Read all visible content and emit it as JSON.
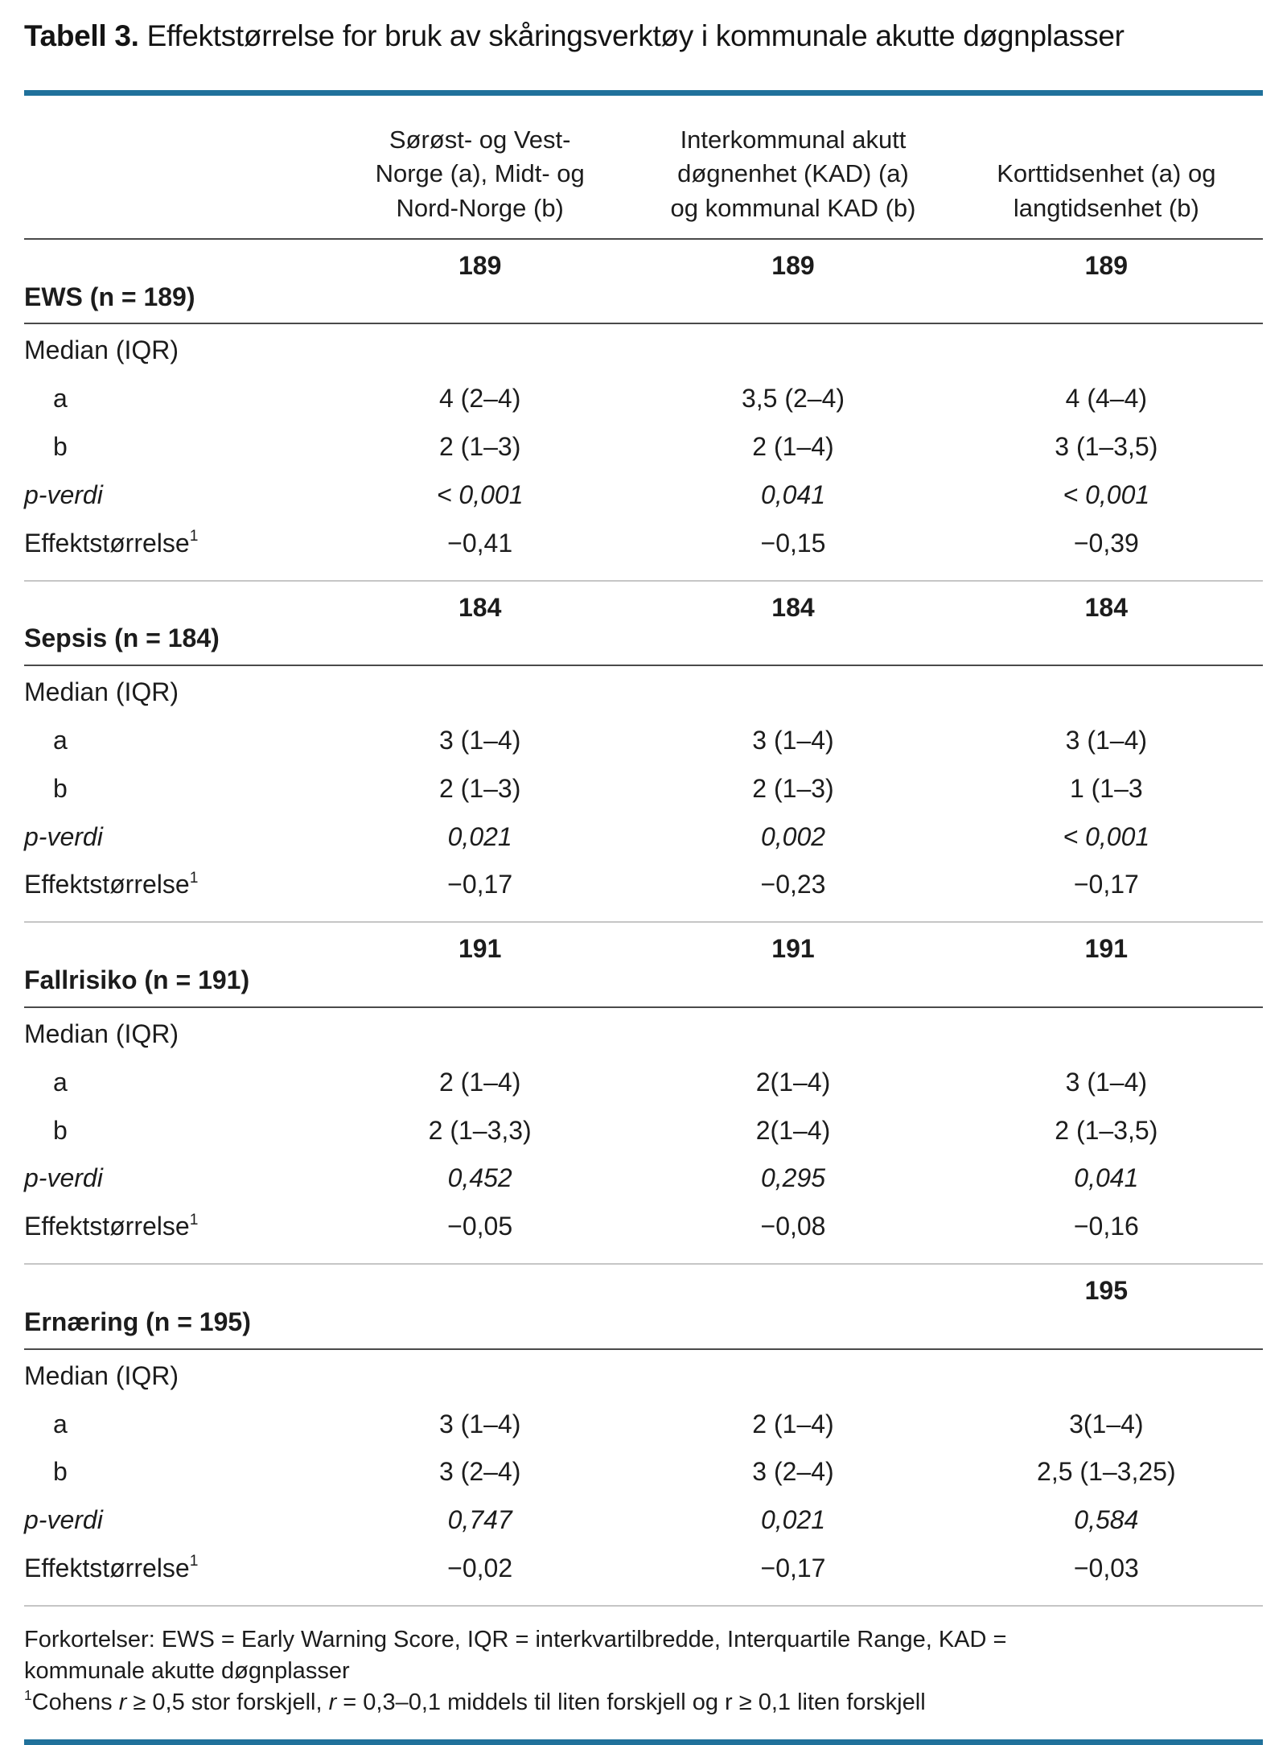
{
  "title": {
    "prefix": "Tabell 3.",
    "text": " Effektstørrelse for bruk av skåringsverktøy i kommunale akutte døgnplasser"
  },
  "accent_color": "#20719b",
  "header": {
    "col1_lines": [
      "Sørøst- og Vest-",
      "Norge (a), Midt- og",
      "Nord-Norge (b)"
    ],
    "col2_lines": [
      "Interkommunal akutt",
      "døgnenhet (KAD) (a)",
      "og kommunal KAD (b)"
    ],
    "col3_lines": [
      "Korttidsenhet (a) og",
      "langtidsenhet (b)"
    ]
  },
  "sections": [
    {
      "title": "EWS (n = 189)",
      "counts": [
        "189",
        "189",
        "189"
      ],
      "rows": [
        {
          "label": "Median (IQR)",
          "values": [
            "",
            "",
            ""
          ]
        },
        {
          "label": "a",
          "values": [
            "4 (2–4)",
            "3,5 (2–4)",
            "4 (4–4)"
          ]
        },
        {
          "label": "b",
          "values": [
            "2 (1–3)",
            "2 (1–4)",
            "3 (1–3,5)"
          ]
        },
        {
          "label": "p-verdi",
          "values": [
            "< 0,001",
            "0,041",
            "< 0,001"
          ]
        },
        {
          "label": "Effektstørrelse",
          "sup": "1",
          "values": [
            "−0,41",
            "−0,15",
            "−0,39"
          ]
        }
      ]
    },
    {
      "title": "Sepsis (n = 184)",
      "counts": [
        "184",
        "184",
        "184"
      ],
      "rows": [
        {
          "label": "Median (IQR)",
          "values": [
            "",
            "",
            ""
          ]
        },
        {
          "label": "a",
          "values": [
            "3 (1–4)",
            "3 (1–4)",
            "3 (1–4)"
          ]
        },
        {
          "label": "b",
          "values": [
            "2 (1–3)",
            "2 (1–3)",
            "1 (1–3"
          ]
        },
        {
          "label": "p-verdi",
          "values": [
            "0,021",
            "0,002",
            "< 0,001"
          ]
        },
        {
          "label": "Effektstørrelse",
          "sup": "1",
          "values": [
            "−0,17",
            "−0,23",
            "−0,17"
          ]
        }
      ]
    },
    {
      "title": "Fallrisiko (n = 191)",
      "counts": [
        "191",
        "191",
        "191"
      ],
      "rows": [
        {
          "label": "Median (IQR)",
          "values": [
            "",
            "",
            ""
          ]
        },
        {
          "label": "a",
          "values": [
            "2 (1–4)",
            "2(1–4)",
            "3 (1–4)"
          ]
        },
        {
          "label": "b",
          "values": [
            "2 (1–3,3)",
            "2(1–4)",
            "2 (1–3,5)"
          ]
        },
        {
          "label": "p-verdi",
          "values": [
            "0,452",
            "0,295",
            "0,041"
          ]
        },
        {
          "label": "Effektstørrelse",
          "sup": "1",
          "values": [
            "−0,05",
            "−0,08",
            "−0,16"
          ]
        }
      ]
    },
    {
      "title": "Ernæring (n = 195)",
      "counts": [
        "",
        "",
        "195"
      ],
      "rows": [
        {
          "label": "Median (IQR)",
          "values": [
            "",
            "",
            ""
          ]
        },
        {
          "label": "a",
          "values": [
            "3 (1–4)",
            "2 (1–4)",
            "3(1–4)"
          ]
        },
        {
          "label": "b",
          "values": [
            "3 (2–4)",
            "3 (2–4)",
            "2,5 (1–3,25)"
          ]
        },
        {
          "label": "p-verdi",
          "values": [
            "0,747",
            "0,021",
            "0,584"
          ]
        },
        {
          "label": "Effektstørrelse",
          "sup": "1",
          "values": [
            "−0,02",
            "−0,17",
            "−0,03"
          ]
        }
      ]
    }
  ],
  "footnotes": {
    "line1": "Forkortelser: EWS = Early Warning Score, IQR = interkvartilbredde, Interquartile Range, KAD = kommunale akutte døgnplasser",
    "line2_sup": "1",
    "line2": {
      "p1": "Cohens ",
      "r1": "r",
      "p2": " ≥ 0,5 stor forskjell, ",
      "r2": "r",
      "p3": " = 0,3–0,1 middels til liten forskjell og r ≥ 0,1 liten forskjell"
    }
  }
}
